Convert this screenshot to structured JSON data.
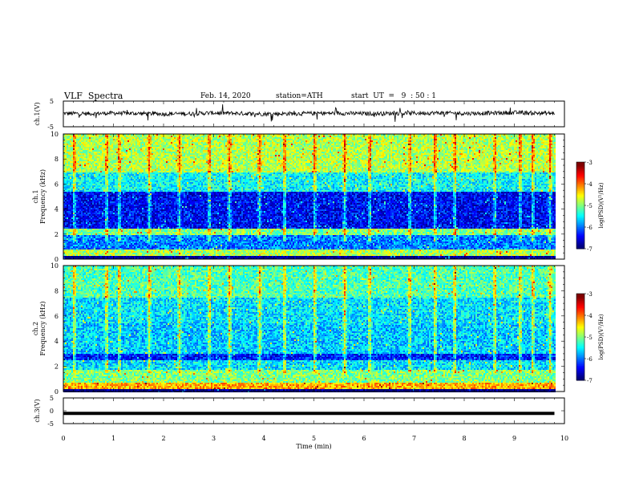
{
  "header": {
    "title": "VLF  Spectra",
    "date": "Feb. 14, 2020",
    "station": "station=ATH",
    "start": "start  UT  =   9  : 50 : 1"
  },
  "chart_data": [
    {
      "type": "line",
      "panel": "ch1-waveform",
      "ylabel": "ch.1(V)",
      "ylim": [
        -5,
        5
      ],
      "ytick_labels": [
        "5",
        "-5"
      ],
      "xlim": [
        0,
        10
      ],
      "x": [
        0,
        0.5,
        1,
        1.5,
        2,
        2.5,
        3,
        3.5,
        4,
        4.5,
        5,
        5.5,
        6,
        6.5,
        7,
        7.5,
        8,
        8.5,
        9,
        9.5,
        9.8
      ],
      "y": [
        0.2,
        0.1,
        0.3,
        0.2,
        0.0,
        0.1,
        0.4,
        0.2,
        0.0,
        0.1,
        0.2,
        0.3,
        0.1,
        0.2,
        0.3,
        0.4,
        0.2,
        0.3,
        0.5,
        0.3,
        0.2
      ]
    },
    {
      "type": "heatmap",
      "panel": "ch1-spectrogram",
      "ylabel": "ch.1\nFrequency  (kHz)",
      "ylim": [
        0,
        10
      ],
      "ytick_labels": [
        "0",
        "2",
        "4",
        "6",
        "8",
        "10"
      ],
      "xlim": [
        0,
        10
      ],
      "data_end_min": 9.8,
      "colorbar": {
        "label": "log(PSD)(V²/Hz)",
        "range": [
          -7,
          -3
        ],
        "tick_labels": [
          "-3",
          "-4",
          "-5",
          "-6",
          "-7"
        ]
      },
      "bands": [
        {
          "f": [
            0,
            0.3
          ],
          "level": -7
        },
        {
          "f": [
            0.3,
            0.8
          ],
          "level": -4.8
        },
        {
          "f": [
            0.8,
            2.0
          ],
          "level": -6.0
        },
        {
          "f": [
            2.0,
            2.5
          ],
          "level": -5.0
        },
        {
          "f": [
            2.5,
            5.5
          ],
          "level": -6.5
        },
        {
          "f": [
            5.5,
            7.0
          ],
          "level": -5.5
        },
        {
          "f": [
            7.0,
            10.0
          ],
          "level": -4.8
        }
      ],
      "bursts_min": [
        0.2,
        0.85,
        1.1,
        1.7,
        2.3,
        2.9,
        3.3,
        3.9,
        4.4,
        5.0,
        5.6,
        6.1,
        6.9,
        7.4,
        7.8,
        8.6,
        9.1,
        9.35,
        9.7
      ]
    },
    {
      "type": "heatmap",
      "panel": "ch2-spectrogram",
      "ylabel": "ch.2\nFrequency  (kHz)",
      "ylim": [
        0,
        10
      ],
      "ytick_labels": [
        "0",
        "2",
        "4",
        "6",
        "8",
        "10"
      ],
      "xlim": [
        0,
        10
      ],
      "data_end_min": 9.8,
      "colorbar": {
        "label": "log(PSD)(V²/Hz)",
        "range": [
          -7,
          -3
        ],
        "tick_labels": [
          "-3",
          "-4",
          "-5",
          "-6",
          "-7"
        ]
      },
      "bands": [
        {
          "f": [
            0,
            0.3
          ],
          "level": -7
        },
        {
          "f": [
            0.3,
            0.8
          ],
          "level": -4.2
        },
        {
          "f": [
            0.8,
            1.8
          ],
          "level": -5.0
        },
        {
          "f": [
            1.8,
            2.5
          ],
          "level": -5.6
        },
        {
          "f": [
            2.5,
            3.0
          ],
          "level": -6.4
        },
        {
          "f": [
            3.0,
            5.5
          ],
          "level": -5.7
        },
        {
          "f": [
            5.5,
            7.5
          ],
          "level": -5.6
        },
        {
          "f": [
            7.5,
            10.0
          ],
          "level": -5.2
        }
      ],
      "bursts_min": [
        0.2,
        0.85,
        1.1,
        1.7,
        2.3,
        2.9,
        3.3,
        3.9,
        4.4,
        5.0,
        5.6,
        6.1,
        6.9,
        7.4,
        7.8,
        8.6,
        9.1,
        9.35,
        9.7
      ]
    },
    {
      "type": "line",
      "panel": "ch3-waveform",
      "ylabel": "ch.3(V)",
      "ylim": [
        -5,
        5
      ],
      "ytick_labels": [
        "5",
        "0",
        "-5"
      ],
      "xlim": [
        0,
        10
      ],
      "x": [
        0,
        9.8
      ],
      "y": [
        -1.0,
        -1.0
      ],
      "xlabel": "Time  (min)",
      "xtick_labels": [
        "0",
        "1",
        "2",
        "3",
        "4",
        "5",
        "6",
        "7",
        "8",
        "9",
        "10"
      ]
    }
  ]
}
